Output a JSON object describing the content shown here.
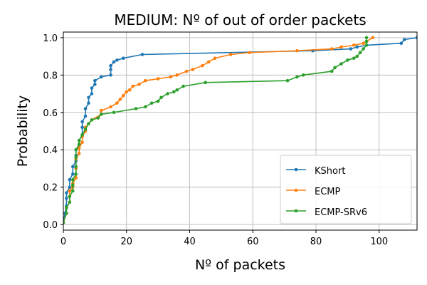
{
  "chart_data": {
    "type": "line",
    "title": "MEDIUM: Nº of out of order packets",
    "xlabel": "Nº of packets",
    "ylabel": "Probability",
    "xlim": [
      0,
      112
    ],
    "ylim": [
      -0.03,
      1.03
    ],
    "x_ticks": [
      0,
      20,
      40,
      60,
      80,
      100
    ],
    "x_tick_labels": [
      "0",
      "20",
      "40",
      "60",
      "80",
      "100"
    ],
    "y_ticks": [
      0.0,
      0.2,
      0.4,
      0.6,
      0.8,
      1.0
    ],
    "y_tick_labels": [
      "0.0",
      "0.2",
      "0.4",
      "0.6",
      "0.8",
      "1.0"
    ],
    "grid": true,
    "legend_position": "bottom-right",
    "series": [
      {
        "name": "KShort",
        "color": "#1f77b4",
        "points": [
          [
            0,
            0.01
          ],
          [
            0.5,
            0.06
          ],
          [
            1,
            0.1
          ],
          [
            1,
            0.14
          ],
          [
            1,
            0.17
          ],
          [
            2,
            0.2
          ],
          [
            2,
            0.24
          ],
          [
            3,
            0.27
          ],
          [
            3,
            0.31
          ],
          [
            4,
            0.34
          ],
          [
            4,
            0.37
          ],
          [
            4,
            0.4
          ],
          [
            5,
            0.42
          ],
          [
            5,
            0.45
          ],
          [
            6,
            0.48
          ],
          [
            6,
            0.52
          ],
          [
            6,
            0.55
          ],
          [
            7,
            0.58
          ],
          [
            7,
            0.62
          ],
          [
            8,
            0.65
          ],
          [
            8,
            0.68
          ],
          [
            9,
            0.7
          ],
          [
            9,
            0.73
          ],
          [
            10,
            0.75
          ],
          [
            10,
            0.77
          ],
          [
            12,
            0.79
          ],
          [
            15,
            0.8
          ],
          [
            15,
            0.83
          ],
          [
            15,
            0.85
          ],
          [
            16,
            0.87
          ],
          [
            17,
            0.88
          ],
          [
            19,
            0.89
          ],
          [
            25,
            0.91
          ],
          [
            79,
            0.93
          ],
          [
            91,
            0.94
          ],
          [
            93,
            0.95
          ],
          [
            96,
            0.96
          ],
          [
            107,
            0.97
          ],
          [
            108,
            0.99
          ],
          [
            112,
            1.0
          ]
        ]
      },
      {
        "name": "ECMP",
        "color": "#ff7f0e",
        "points": [
          [
            0,
            0.01
          ],
          [
            1,
            0.06
          ],
          [
            1,
            0.09
          ],
          [
            2,
            0.12
          ],
          [
            2,
            0.15
          ],
          [
            2,
            0.18
          ],
          [
            3,
            0.2
          ],
          [
            3,
            0.22
          ],
          [
            4,
            0.25
          ],
          [
            4,
            0.3
          ],
          [
            4,
            0.35
          ],
          [
            5,
            0.38
          ],
          [
            5,
            0.41
          ],
          [
            6,
            0.44
          ],
          [
            6,
            0.47
          ],
          [
            7,
            0.5
          ],
          [
            7,
            0.52
          ],
          [
            8,
            0.54
          ],
          [
            9,
            0.56
          ],
          [
            12,
            0.59
          ],
          [
            12,
            0.61
          ],
          [
            15,
            0.63
          ],
          [
            17,
            0.65
          ],
          [
            18,
            0.67
          ],
          [
            19,
            0.69
          ],
          [
            20,
            0.71
          ],
          [
            21,
            0.72
          ],
          [
            22,
            0.74
          ],
          [
            24,
            0.75
          ],
          [
            26,
            0.77
          ],
          [
            30,
            0.78
          ],
          [
            34,
            0.79
          ],
          [
            36,
            0.8
          ],
          [
            39,
            0.82
          ],
          [
            41,
            0.83
          ],
          [
            44,
            0.85
          ],
          [
            46,
            0.87
          ],
          [
            48,
            0.89
          ],
          [
            53,
            0.91
          ],
          [
            59,
            0.92
          ],
          [
            74,
            0.93
          ],
          [
            85,
            0.94
          ],
          [
            88,
            0.95
          ],
          [
            92,
            0.96
          ],
          [
            95,
            0.97
          ],
          [
            96,
            0.98
          ],
          [
            98,
            1.0
          ]
        ]
      },
      {
        "name": "ECMP-SRv6",
        "color": "#2ca02c",
        "points": [
          [
            0,
            0.01
          ],
          [
            1,
            0.06
          ],
          [
            1,
            0.09
          ],
          [
            2,
            0.12
          ],
          [
            2,
            0.15
          ],
          [
            3,
            0.18
          ],
          [
            3,
            0.21
          ],
          [
            3,
            0.24
          ],
          [
            4,
            0.27
          ],
          [
            4,
            0.31
          ],
          [
            4,
            0.36
          ],
          [
            4,
            0.4
          ],
          [
            5,
            0.43
          ],
          [
            5,
            0.45
          ],
          [
            6,
            0.48
          ],
          [
            7,
            0.51
          ],
          [
            8,
            0.54
          ],
          [
            9,
            0.56
          ],
          [
            11,
            0.57
          ],
          [
            12,
            0.59
          ],
          [
            16,
            0.6
          ],
          [
            23,
            0.62
          ],
          [
            26,
            0.63
          ],
          [
            28,
            0.65
          ],
          [
            30,
            0.66
          ],
          [
            31,
            0.68
          ],
          [
            33,
            0.7
          ],
          [
            35,
            0.71
          ],
          [
            36,
            0.72
          ],
          [
            38,
            0.74
          ],
          [
            45,
            0.76
          ],
          [
            71,
            0.77
          ],
          [
            74,
            0.79
          ],
          [
            76,
            0.8
          ],
          [
            85,
            0.82
          ],
          [
            86,
            0.84
          ],
          [
            88,
            0.86
          ],
          [
            90,
            0.88
          ],
          [
            92,
            0.89
          ],
          [
            93,
            0.9
          ],
          [
            94,
            0.92
          ],
          [
            95,
            0.94
          ],
          [
            96,
            0.96
          ],
          [
            96,
            0.98
          ],
          [
            96,
            1.0
          ]
        ]
      }
    ]
  }
}
